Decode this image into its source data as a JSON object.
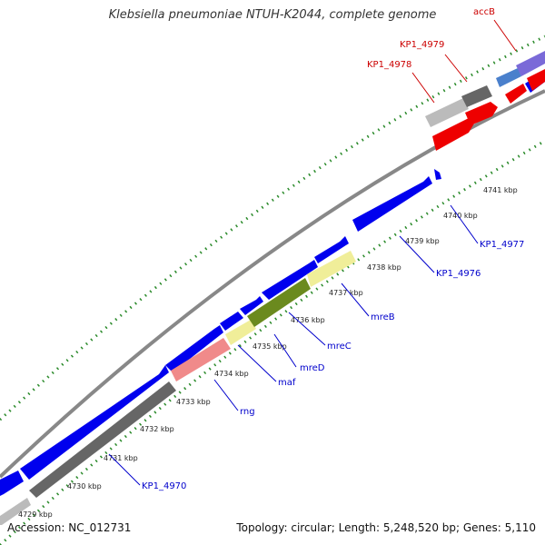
{
  "header": {
    "title": "Klebsiella pneumoniae NTUH-K2044, complete genome"
  },
  "footer": {
    "accession": "Accession: NC_012731",
    "topology": "Topology: circular; Length: 5,248,520 bp; Genes: 5,110"
  },
  "map": {
    "kbp_labels": [
      "4729 kbp",
      "4730 kbp",
      "4731 kbp",
      "4732 kbp",
      "4733 kbp",
      "4734 kbp",
      "4735 kbp",
      "4736 kbp",
      "4737 kbp",
      "4738 kbp",
      "4739 kbp",
      "4740 kbp",
      "4741 kbp"
    ],
    "gene_labels": [
      {
        "text": "KP1_4970",
        "color": "#0000cc"
      },
      {
        "text": "rng",
        "color": "#0000cc"
      },
      {
        "text": "maf",
        "color": "#0000cc"
      },
      {
        "text": "mreD",
        "color": "#0000cc"
      },
      {
        "text": "mreC",
        "color": "#0000cc"
      },
      {
        "text": "mreB",
        "color": "#0000cc"
      },
      {
        "text": "KP1_4976",
        "color": "#0000cc"
      },
      {
        "text": "KP1_4977",
        "color": "#0000cc"
      },
      {
        "text": "KP1_4978",
        "color": "#cc0000"
      },
      {
        "text": "KP1_4979",
        "color": "#cc0000"
      },
      {
        "text": "accB",
        "color": "#cc0000"
      }
    ]
  }
}
